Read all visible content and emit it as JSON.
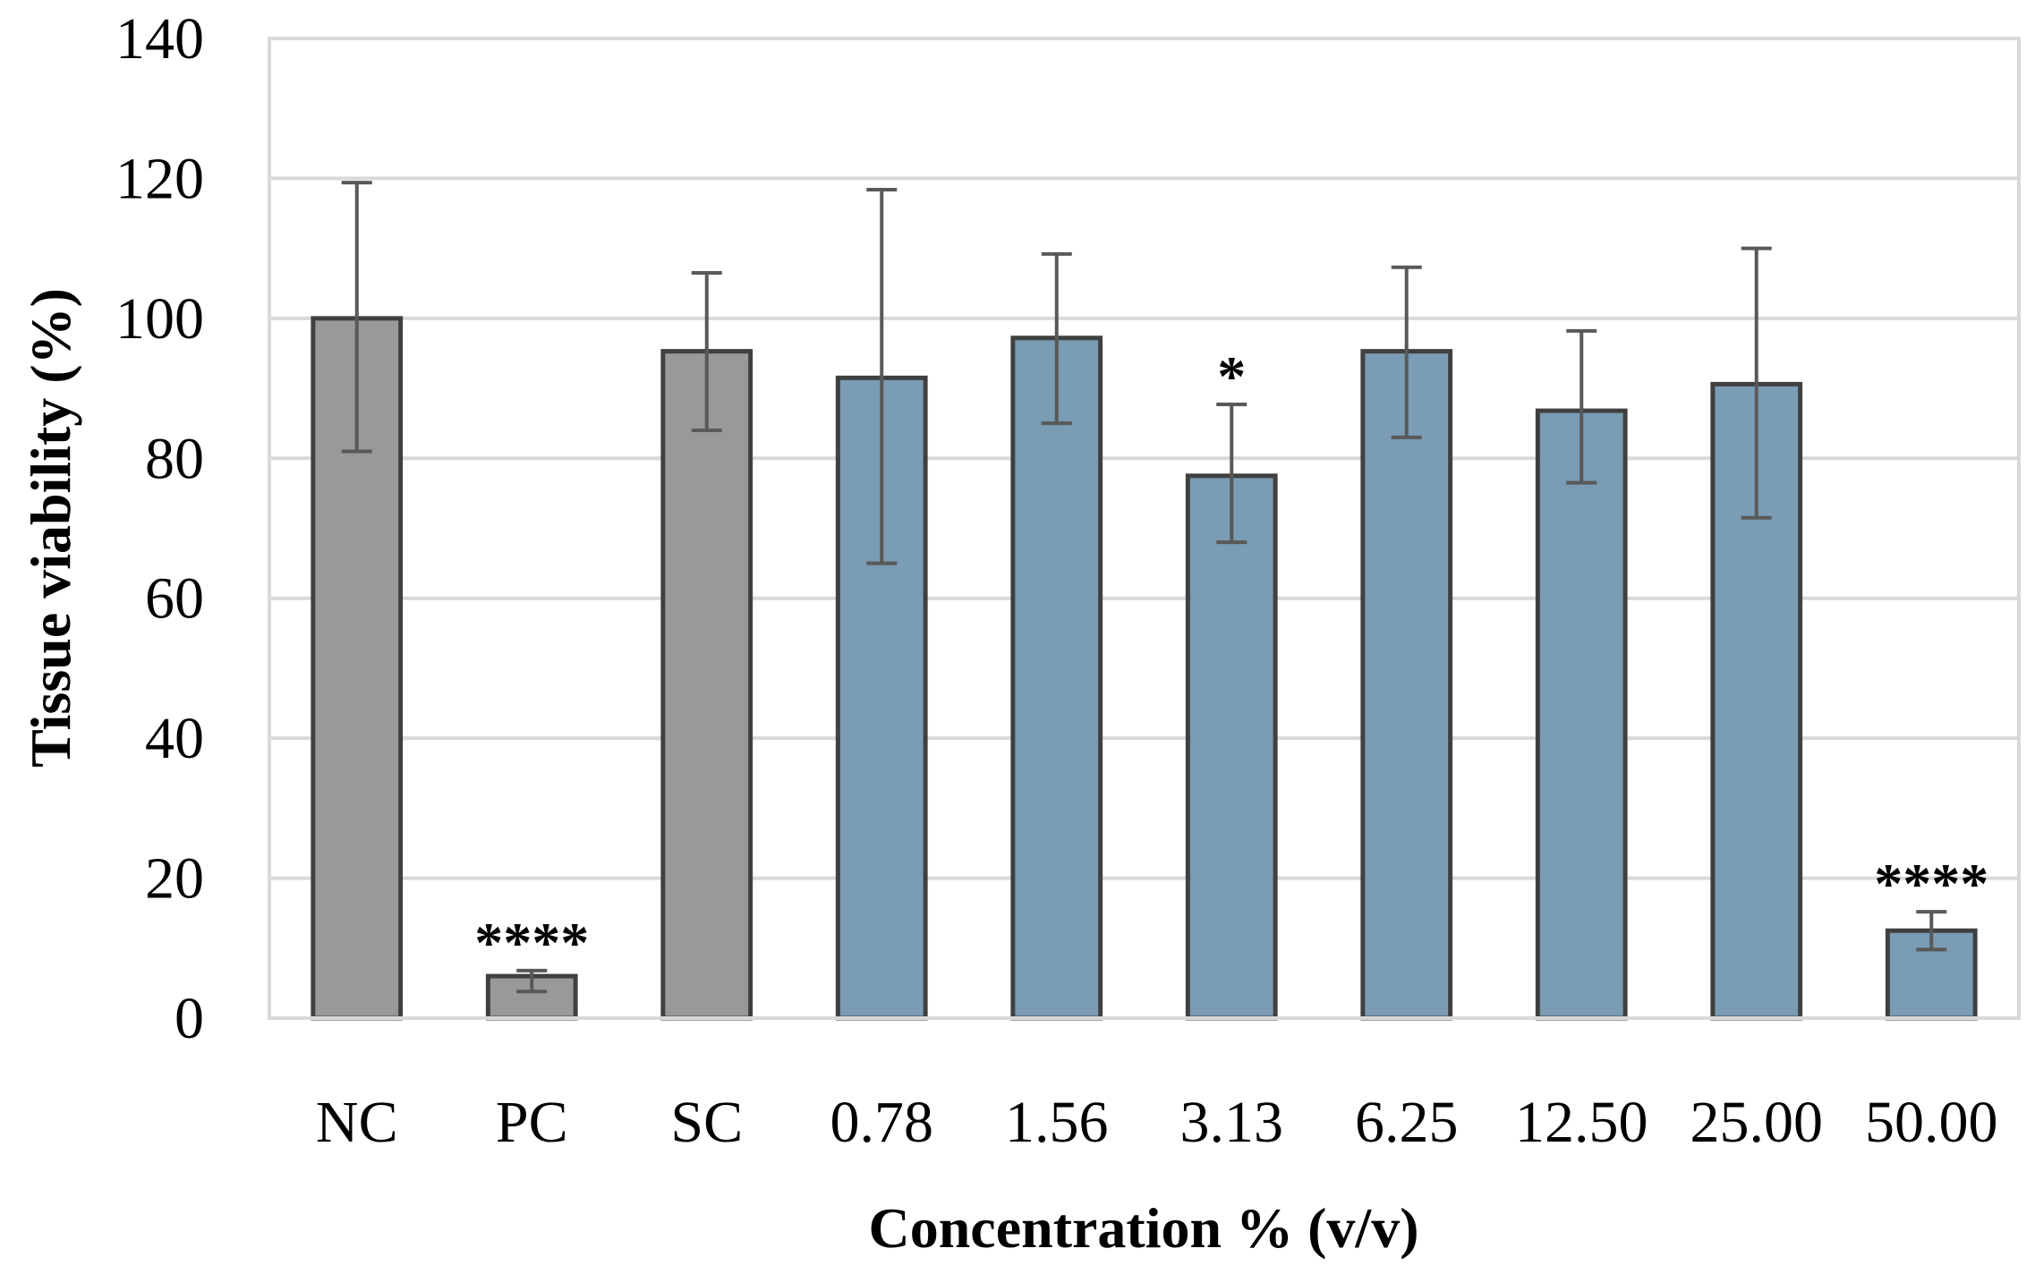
{
  "chart_data": {
    "type": "bar",
    "title": "",
    "xlabel": "Concentration % (v/v)",
    "ylabel": "Tissue viability (%)",
    "ylim": [
      0,
      140
    ],
    "yticks": [
      0,
      20,
      40,
      60,
      80,
      100,
      120,
      140
    ],
    "grid": true,
    "categories": [
      "NC",
      "PC",
      "SC",
      "0.78",
      "1.56",
      "3.13",
      "6.25",
      "12.50",
      "25.00",
      "50.00"
    ],
    "values": [
      100,
      6,
      95.3,
      91.5,
      97.2,
      77.5,
      95.3,
      86.8,
      90.6,
      12.5
    ],
    "error_low": [
      81,
      3.8,
      84,
      65,
      85,
      68,
      83,
      76.5,
      71.5,
      9.8
    ],
    "error_high": [
      119.4,
      6.8,
      106.5,
      118.4,
      109.2,
      87.7,
      107.3,
      98.2,
      110,
      15.2
    ],
    "annotations": [
      "",
      "****",
      "",
      "",
      "",
      "*",
      "",
      "",
      "",
      "****"
    ],
    "bar_colors": [
      "#999999",
      "#999999",
      "#999999",
      "#7a9cb4",
      "#7a9cb4",
      "#7a9cb4",
      "#7a9cb4",
      "#7a9cb4",
      "#7a9cb4",
      "#7a9cb4"
    ],
    "edge_color": "#404040",
    "grid_color": "#d9d9d9",
    "errorbar_color": "#595959"
  }
}
